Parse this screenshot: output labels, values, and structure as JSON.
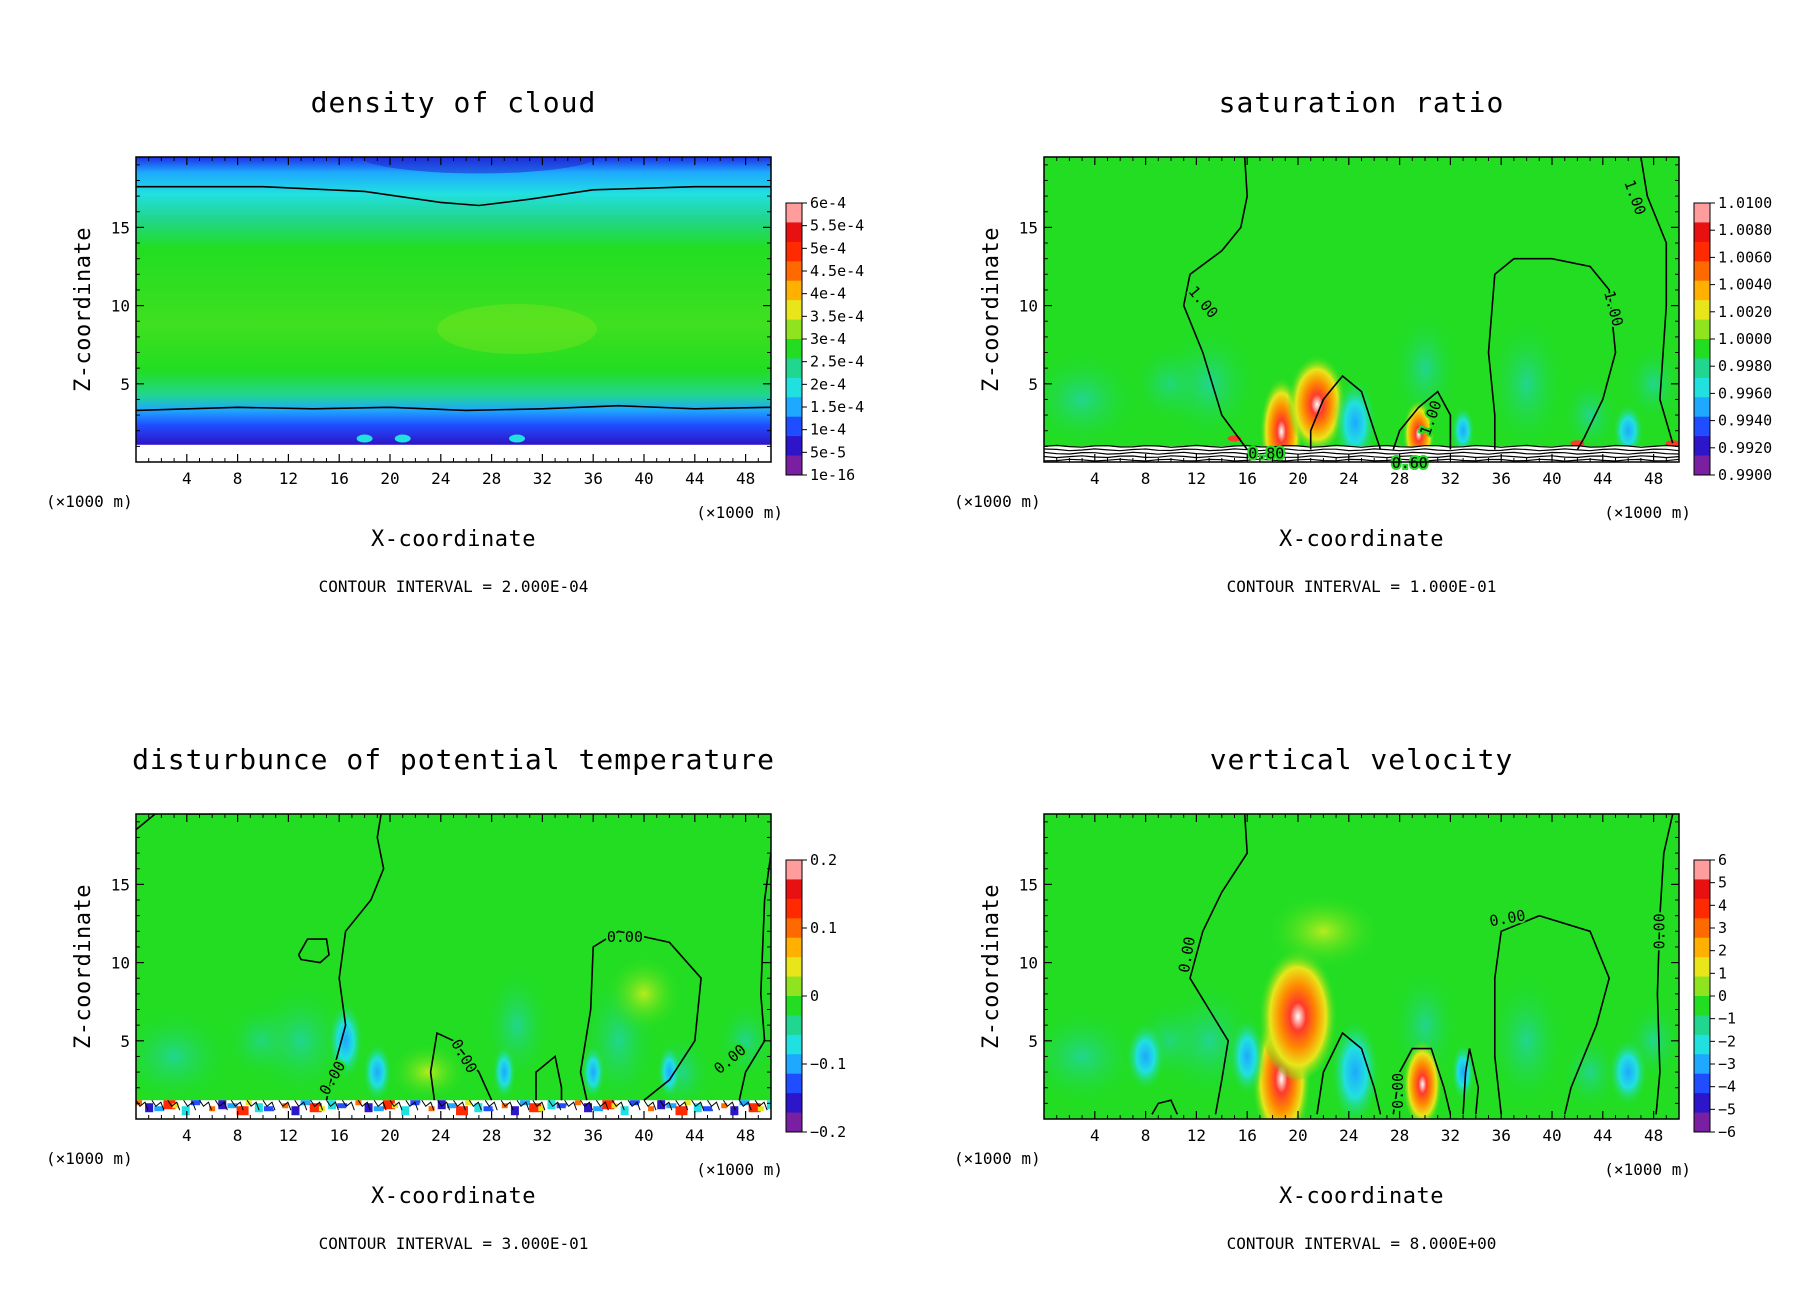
{
  "figure": {
    "palette": [
      "#7a1fa2",
      "#2d16c9",
      "#1f4dff",
      "#1ea8ff",
      "#21e0e0",
      "#21d68f",
      "#22dd22",
      "#8fe41f",
      "#e8e61a",
      "#ffb000",
      "#ff6a00",
      "#ff2a00",
      "#e81010",
      "#ff9c9c"
    ]
  },
  "chart_data": [
    {
      "type": "contour",
      "title": "density of cloud",
      "xlabel": "X-coordinate",
      "ylabel": "Z-coordinate",
      "x_unit": "(×1000 m)",
      "y_unit": "(×1000 m)",
      "xlim": [
        0,
        50
      ],
      "ylim": [
        0,
        19.5
      ],
      "xticks": [
        "4",
        "8",
        "12",
        "16",
        "20",
        "24",
        "28",
        "32",
        "36",
        "40",
        "44",
        "48"
      ],
      "yticks": [
        "5",
        "10",
        "15"
      ],
      "colorbar_labels": [
        "6e-4",
        "5.5e-4",
        "5e-4",
        "4.5e-4",
        "4e-4",
        "3.5e-4",
        "3e-4",
        "2.5e-4",
        "2e-4",
        "1.5e-4",
        "1e-4",
        "5e-5",
        "1e-16"
      ],
      "contour_interval": "CONTOUR INTERVAL = 2.000E-04",
      "contour_labels": [],
      "field": "cloud",
      "contour_lines": [
        [
          [
            0,
            17.6
          ],
          [
            10,
            17.6
          ],
          [
            18,
            17.3
          ],
          [
            24,
            16.6
          ],
          [
            27,
            16.4
          ],
          [
            31,
            16.8
          ],
          [
            36,
            17.4
          ],
          [
            44,
            17.6
          ],
          [
            50,
            17.6
          ]
        ],
        [
          [
            0,
            3.3
          ],
          [
            8,
            3.5
          ],
          [
            14,
            3.4
          ],
          [
            20,
            3.5
          ],
          [
            26,
            3.3
          ],
          [
            32,
            3.4
          ],
          [
            38,
            3.6
          ],
          [
            44,
            3.4
          ],
          [
            50,
            3.5
          ]
        ]
      ]
    },
    {
      "type": "contour",
      "title": "saturation ratio",
      "xlabel": "X-coordinate",
      "ylabel": "Z-coordinate",
      "x_unit": "(×1000 m)",
      "y_unit": "(×1000 m)",
      "xlim": [
        0,
        50
      ],
      "ylim": [
        0,
        19.5
      ],
      "xticks": [
        "4",
        "8",
        "12",
        "16",
        "20",
        "24",
        "28",
        "32",
        "36",
        "40",
        "44",
        "48"
      ],
      "yticks": [
        "5",
        "10",
        "15"
      ],
      "colorbar_labels": [
        "1.0100",
        "1.0080",
        "1.0060",
        "1.0040",
        "1.0020",
        "1.0000",
        "0.9980",
        "0.9960",
        "0.9940",
        "0.9920",
        "0.9900"
      ],
      "contour_interval": "CONTOUR INTERVAL = 1.000E-01",
      "contour_labels": [
        {
          "text": "1.00",
          "x": 12.5,
          "y": 10.2,
          "rot": 50
        },
        {
          "text": "1.00",
          "x": 46.5,
          "y": 16.9,
          "rot": 70
        },
        {
          "text": "1.00",
          "x": 44.8,
          "y": 9.8,
          "rot": 75
        },
        {
          "text": "1.00",
          "x": 30.5,
          "y": 2.8,
          "rot": -70
        },
        {
          "text": "0.80",
          "x": 17.5,
          "y": 0.5,
          "rot": 0
        },
        {
          "text": "0.60",
          "x": 28.8,
          "y": -0.1,
          "rot": 0
        }
      ],
      "field": "sat",
      "contour_lines": [
        [
          [
            16,
            0.8
          ],
          [
            14,
            3
          ],
          [
            12.5,
            7
          ],
          [
            11,
            10
          ],
          [
            11.5,
            12
          ],
          [
            14,
            13.5
          ],
          [
            15.5,
            15
          ],
          [
            16,
            17
          ],
          [
            15.8,
            19.5
          ]
        ],
        [
          [
            21,
            0.8
          ],
          [
            21,
            2
          ],
          [
            22,
            4
          ],
          [
            23.5,
            5.5
          ],
          [
            25,
            4.5
          ],
          [
            26,
            2
          ],
          [
            26.5,
            0.8
          ]
        ],
        [
          [
            27.5,
            0.8
          ],
          [
            28,
            2
          ],
          [
            29.5,
            3.5
          ],
          [
            31,
            4.5
          ],
          [
            32,
            3
          ],
          [
            32,
            0.8
          ]
        ],
        [
          [
            35.5,
            0.8
          ],
          [
            35.5,
            3
          ],
          [
            35,
            7
          ],
          [
            35.5,
            12
          ],
          [
            37,
            13
          ],
          [
            40,
            13
          ],
          [
            43,
            12.5
          ],
          [
            44.5,
            11
          ],
          [
            45,
            7
          ],
          [
            44,
            4
          ],
          [
            42.5,
            1.5
          ],
          [
            42,
            0.8
          ]
        ],
        [
          [
            47,
            19.5
          ],
          [
            47.5,
            17
          ],
          [
            49,
            14
          ],
          [
            49,
            10
          ],
          [
            48.5,
            4
          ],
          [
            49.5,
            1.2
          ]
        ]
      ],
      "bottom_lines": 5
    },
    {
      "type": "contour",
      "title": "disturbunce of potential temperature",
      "xlabel": "X-coordinate",
      "ylabel": "Z-coordinate",
      "x_unit": "(×1000 m)",
      "y_unit": "(×1000 m)",
      "xlim": [
        0,
        50
      ],
      "ylim": [
        0,
        19.5
      ],
      "xticks": [
        "4",
        "8",
        "12",
        "16",
        "20",
        "24",
        "28",
        "32",
        "36",
        "40",
        "44",
        "48"
      ],
      "yticks": [
        "5",
        "10",
        "15"
      ],
      "colorbar_labels": [
        "0.2",
        "0.1",
        "0",
        "−0.1",
        "−0.2"
      ],
      "contour_interval": "CONTOUR INTERVAL = 3.000E-01",
      "contour_labels": [
        {
          "text": "0.00",
          "x": 15.5,
          "y": 2.6,
          "rot": -60
        },
        {
          "text": "0.00",
          "x": 25.8,
          "y": 4.0,
          "rot": 60
        },
        {
          "text": "0.00",
          "x": 38.5,
          "y": 11.6,
          "rot": 0
        },
        {
          "text": "0.00",
          "x": 46.8,
          "y": 3.8,
          "rot": -40
        }
      ],
      "field": "theta",
      "contour_lines": [
        [
          [
            0,
            18.5
          ],
          [
            1.5,
            19.5
          ]
        ],
        [
          [
            4,
            19.5
          ],
          [
            6,
            19.5
          ]
        ],
        [
          [
            19.3,
            19.5
          ],
          [
            19,
            18
          ],
          [
            19.5,
            16
          ],
          [
            18.5,
            14
          ],
          [
            16.5,
            12
          ],
          [
            16,
            9
          ],
          [
            16.5,
            6
          ],
          [
            15.5,
            3
          ],
          [
            15,
            1.2
          ]
        ],
        [
          [
            12.8,
            10.5
          ],
          [
            13.5,
            11.5
          ],
          [
            15,
            11.5
          ],
          [
            15.2,
            10.5
          ],
          [
            14.5,
            10
          ],
          [
            13,
            10.2
          ],
          [
            12.8,
            10.5
          ]
        ],
        [
          [
            23.5,
            1.2
          ],
          [
            23.2,
            3
          ],
          [
            23.7,
            5.5
          ],
          [
            25,
            5
          ],
          [
            27,
            3
          ],
          [
            28,
            1.2
          ]
        ],
        [
          [
            31.5,
            1.2
          ],
          [
            31.5,
            3
          ],
          [
            33,
            4
          ],
          [
            33.5,
            2
          ],
          [
            33.5,
            1.2
          ]
        ],
        [
          [
            35.5,
            1.2
          ],
          [
            35,
            3
          ],
          [
            35.8,
            7
          ],
          [
            36,
            11
          ],
          [
            38,
            12
          ],
          [
            42,
            11.3
          ],
          [
            44.5,
            9
          ],
          [
            44,
            5
          ],
          [
            42,
            2.5
          ],
          [
            40,
            1.2
          ]
        ],
        [
          [
            47.5,
            1.2
          ],
          [
            48,
            3
          ],
          [
            49.5,
            5
          ],
          [
            49.2,
            8
          ],
          [
            49.5,
            14
          ],
          [
            50,
            17
          ]
        ]
      ],
      "noisy_bottom": true
    },
    {
      "type": "contour",
      "title": "vertical velocity",
      "xlabel": "X-coordinate",
      "ylabel": "Z-coordinate",
      "x_unit": "(×1000 m)",
      "y_unit": "(×1000 m)",
      "xlim": [
        0,
        50
      ],
      "ylim": [
        0,
        19.5
      ],
      "xticks": [
        "4",
        "8",
        "12",
        "16",
        "20",
        "24",
        "28",
        "32",
        "36",
        "40",
        "44",
        "48"
      ],
      "yticks": [
        "5",
        "10",
        "15"
      ],
      "colorbar_labels": [
        "6",
        "5",
        "4",
        "3",
        "2",
        "1",
        "0",
        "−1",
        "−2",
        "−3",
        "−4",
        "−5",
        "−6"
      ],
      "contour_interval": "CONTOUR INTERVAL = 8.000E+00",
      "contour_labels": [
        {
          "text": "0.00",
          "x": 11.3,
          "y": 10.5,
          "rot": -80
        },
        {
          "text": "0.00",
          "x": 36.5,
          "y": 12.8,
          "rot": -10
        },
        {
          "text": "0.00",
          "x": 48.5,
          "y": 12.0,
          "rot": -90
        },
        {
          "text": "0.00",
          "x": 27.9,
          "y": 1.8,
          "rot": -90
        }
      ],
      "field": "w",
      "contour_lines": [
        [
          [
            15.8,
            19.5
          ],
          [
            16,
            17
          ],
          [
            14,
            14.5
          ],
          [
            12.5,
            12
          ],
          [
            11.5,
            9
          ],
          [
            13,
            7
          ],
          [
            14.5,
            5
          ],
          [
            14,
            2.5
          ],
          [
            13.5,
            0.3
          ]
        ],
        [
          [
            8.5,
            0.3
          ],
          [
            9,
            1
          ],
          [
            10,
            1.2
          ],
          [
            10.5,
            0.3
          ]
        ],
        [
          [
            21.5,
            0.3
          ],
          [
            22,
            3
          ],
          [
            23.5,
            5.5
          ],
          [
            25,
            4.5
          ],
          [
            26,
            2
          ],
          [
            26.5,
            0.3
          ]
        ],
        [
          [
            27.5,
            0.3
          ],
          [
            28,
            3
          ],
          [
            29,
            4.5
          ],
          [
            30.5,
            4.5
          ],
          [
            31.5,
            2
          ],
          [
            32,
            0.3
          ]
        ],
        [
          [
            33,
            0.3
          ],
          [
            33.2,
            3
          ],
          [
            33.5,
            4.5
          ],
          [
            34.2,
            2
          ],
          [
            34,
            0.3
          ]
        ],
        [
          [
            36,
            0.3
          ],
          [
            35.5,
            4
          ],
          [
            35.5,
            9
          ],
          [
            36,
            12
          ],
          [
            39,
            13
          ],
          [
            43,
            12
          ],
          [
            44.5,
            9
          ],
          [
            43.5,
            6
          ],
          [
            41.5,
            2
          ],
          [
            41,
            0.3
          ]
        ],
        [
          [
            48.2,
            0.3
          ],
          [
            48.5,
            3
          ],
          [
            48.3,
            8
          ],
          [
            48.5,
            13
          ],
          [
            48.8,
            17
          ],
          [
            49.5,
            19.5
          ]
        ]
      ]
    }
  ]
}
